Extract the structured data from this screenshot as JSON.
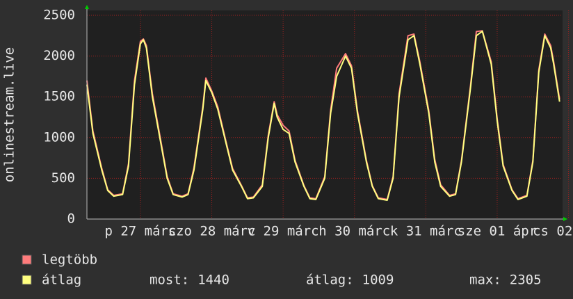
{
  "chart_data": {
    "type": "line",
    "ylabel": "onlinestream.live",
    "x": [
      0,
      2,
      5,
      7,
      9,
      12,
      14,
      16,
      18,
      19,
      20,
      22,
      25,
      27,
      29,
      32,
      34,
      36,
      39,
      40,
      42,
      44,
      47,
      49,
      52,
      54,
      56,
      59,
      61,
      63,
      64,
      66,
      68,
      70,
      73,
      75,
      77,
      80,
      82,
      84,
      87,
      89,
      91,
      94,
      96,
      98,
      101,
      103,
      105,
      108,
      110,
      112,
      115,
      117,
      119,
      122,
      124,
      126,
      129,
      131,
      133,
      136,
      138,
      140,
      143,
      145,
      148,
      150,
      152,
      154,
      156,
      157,
      159
    ],
    "series": [
      {
        "name": "legtöbb",
        "color": "#ff7c7c",
        "values": [
          1700,
          1080,
          620,
          360,
          290,
          310,
          680,
          1700,
          2180,
          2210,
          2130,
          1540,
          930,
          520,
          310,
          280,
          310,
          630,
          1380,
          1730,
          1570,
          1380,
          920,
          620,
          410,
          260,
          270,
          420,
          1030,
          1440,
          1280,
          1150,
          1080,
          720,
          410,
          260,
          250,
          520,
          1340,
          1850,
          2030,
          1880,
          1330,
          720,
          410,
          260,
          240,
          520,
          1540,
          2250,
          2270,
          1930,
          1330,
          730,
          420,
          290,
          310,
          720,
          1630,
          2300,
          2310,
          1930,
          1230,
          670,
          360,
          250,
          290,
          720,
          1830,
          2270,
          2130,
          1930,
          1470
        ]
      },
      {
        "name": "átlag",
        "color": "#ffff80",
        "values": [
          1650,
          1050,
          600,
          350,
          280,
          300,
          650,
          1650,
          2150,
          2200,
          2100,
          1500,
          900,
          500,
          300,
          270,
          300,
          600,
          1350,
          1700,
          1550,
          1350,
          900,
          600,
          400,
          250,
          260,
          400,
          1000,
          1420,
          1250,
          1100,
          1050,
          700,
          400,
          250,
          240,
          500,
          1300,
          1750,
          2000,
          1850,
          1300,
          700,
          400,
          250,
          230,
          500,
          1500,
          2200,
          2250,
          1900,
          1300,
          700,
          400,
          280,
          300,
          700,
          1600,
          2250,
          2305,
          1900,
          1200,
          650,
          350,
          240,
          280,
          700,
          1800,
          2250,
          2100,
          1900,
          1440
        ]
      }
    ],
    "xlim": [
      0,
      160
    ],
    "xticks": [
      {
        "value": 18,
        "label": "p 27 márc"
      },
      {
        "value": 42,
        "label": "szo 28 márc"
      },
      {
        "value": 66,
        "label": "v 29 márc"
      },
      {
        "value": 90,
        "label": "h 30 márc"
      },
      {
        "value": 114,
        "label": "k 31 márc"
      },
      {
        "value": 138,
        "label": "sze 01 ápr"
      },
      {
        "value": 162,
        "label": "cs 02 ápr"
      }
    ],
    "ylim": [
      0,
      2500
    ],
    "yticks": [
      0,
      500,
      1000,
      1500,
      2000,
      2500
    ],
    "grid": true,
    "stats": [
      {
        "label": "most:",
        "value": 1440
      },
      {
        "label": "átlag:",
        "value": 1009
      },
      {
        "label": "max:",
        "value": 2305
      }
    ]
  }
}
